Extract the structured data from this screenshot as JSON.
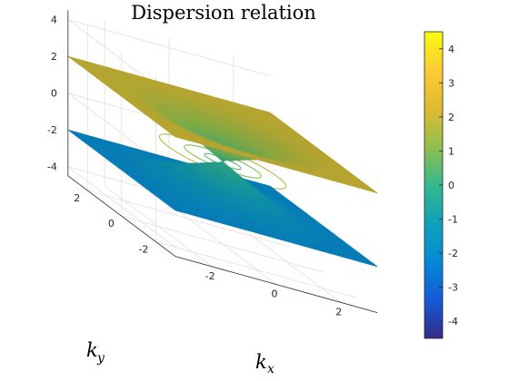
{
  "chart_data": {
    "type": "surface",
    "title": "Dispersion relation",
    "xlabel": "k",
    "xlabel_sub": "x",
    "ylabel": "k",
    "ylabel_sub": "y",
    "xlim": [
      -3.14,
      3.14
    ],
    "ylim": [
      -3.14,
      3.14
    ],
    "zlim": [
      -4.5,
      4.5
    ],
    "xticks": [
      "-2",
      "0",
      "2"
    ],
    "yticks": [
      "-2",
      "0",
      "2"
    ],
    "zticks": [
      "-4",
      "-2",
      "0",
      "2",
      "4"
    ],
    "colorbar": {
      "min": -4.5,
      "max": 4.5,
      "ticks": [
        "-4",
        "-3",
        "-2",
        "-1",
        "0",
        "1",
        "2",
        "3",
        "4"
      ],
      "colormap": "parula"
    },
    "surfaces": [
      {
        "band": "upper",
        "value_at_center": 0.0,
        "value_at_edge": 3.0,
        "value_at_corner": 4.5
      },
      {
        "band": "lower",
        "value_at_center": 0.0,
        "value_at_edge": -3.0,
        "value_at_corner": -4.5
      }
    ],
    "contour_levels": [
      0.5,
      1.0,
      1.5,
      2.0,
      2.5,
      3.0,
      3.5,
      4.0
    ],
    "grid": true
  }
}
